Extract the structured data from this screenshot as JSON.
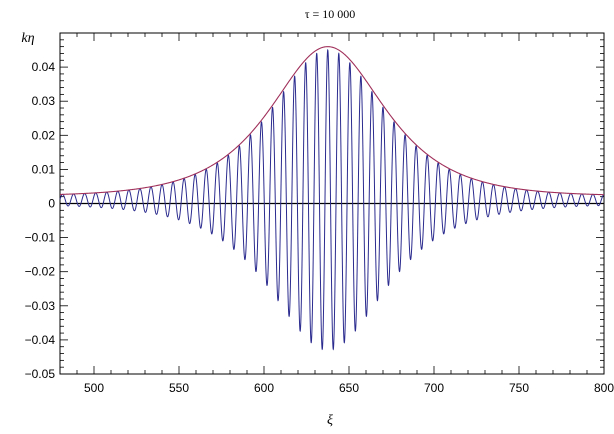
{
  "chart_data": {
    "type": "line",
    "title": "τ = 10 000",
    "xlabel": "ξ",
    "ylabel": "kη",
    "xlim": [
      480,
      800
    ],
    "ylim": [
      -0.05,
      0.05
    ],
    "x_ticks": [
      500,
      550,
      600,
      650,
      700,
      750,
      800
    ],
    "x_tick_labels": [
      "500",
      "550",
      "600",
      "650",
      "700",
      "750",
      "800"
    ],
    "y_ticks": [
      -0.05,
      -0.04,
      -0.03,
      -0.02,
      -0.01,
      0,
      0.01,
      0.02,
      0.03,
      0.04
    ],
    "y_tick_labels": [
      "−0.05",
      "−0.04",
      "−0.03",
      "−0.02",
      "−0.01",
      "0",
      "0.01",
      "0.02",
      "0.03",
      "0.04"
    ],
    "grid": false,
    "legend": "none",
    "series": [
      {
        "role": "oscillating-wave",
        "color": "#2b2b8f",
        "center": 637.5,
        "peak_amplitude": 0.044,
        "wavelength": 6.5,
        "mean_offset": 0.001
      },
      {
        "role": "envelope",
        "color": "#a0305a",
        "center": 637.5,
        "peak": 0.046,
        "baseline": 0.0022
      }
    ],
    "zero_line": {
      "y": 0,
      "color": "#000000"
    }
  }
}
